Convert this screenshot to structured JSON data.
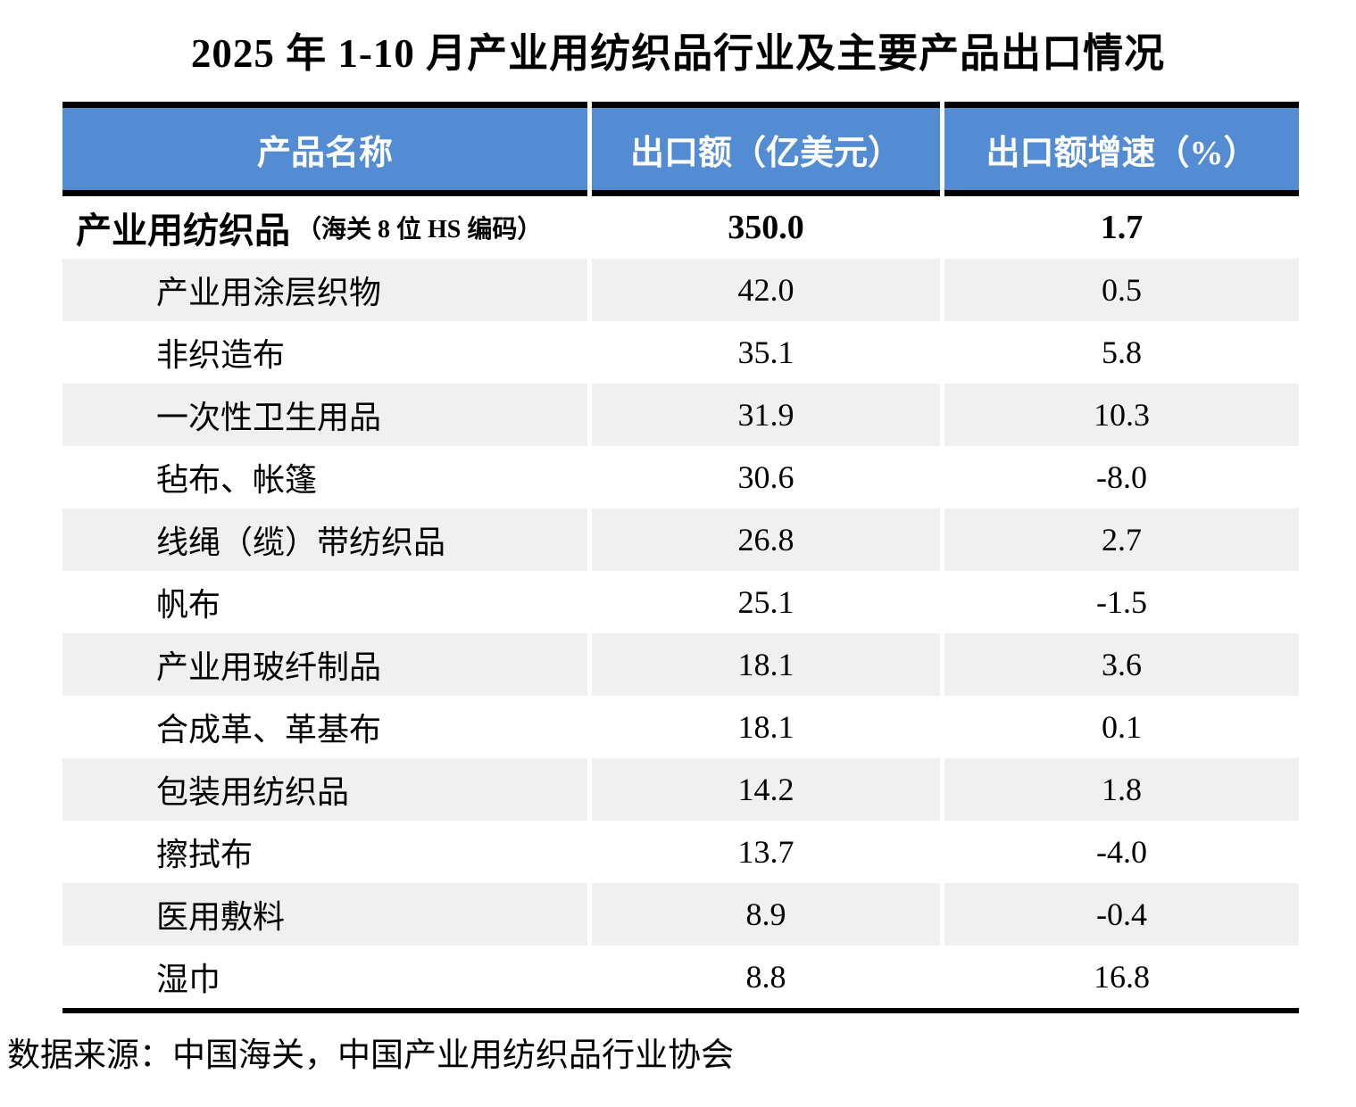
{
  "title": "2025 年 1-10 月产业用纺织品行业及主要产品出口情况",
  "source_note": "数据来源：中国海关，中国产业用纺织品行业协会",
  "colors": {
    "header_bg": "#538CD2",
    "header_text": "#FFFFFF",
    "stripe_bg": "#F0F0F0",
    "border": "#000000"
  },
  "table": {
    "headers": [
      "产品名称",
      "出口额（亿美元）",
      "出口额增速（%）"
    ],
    "rows": [
      {
        "name": "产业用纺织品",
        "note": "（海关 8 位 HS 编码）",
        "export_value": "350.0",
        "growth": "1.7",
        "bold": true
      },
      {
        "name": "产业用涂层织物",
        "export_value": "42.0",
        "growth": "0.5"
      },
      {
        "name": "非织造布",
        "export_value": "35.1",
        "growth": "5.8"
      },
      {
        "name": "一次性卫生用品",
        "export_value": "31.9",
        "growth": "10.3"
      },
      {
        "name": "毡布、帐篷",
        "export_value": "30.6",
        "growth": "-8.0"
      },
      {
        "name": "线绳（缆）带纺织品",
        "export_value": "26.8",
        "growth": "2.7"
      },
      {
        "name": "帆布",
        "export_value": "25.1",
        "growth": "-1.5"
      },
      {
        "name": "产业用玻纤制品",
        "export_value": "18.1",
        "growth": "3.6"
      },
      {
        "name": "合成革、革基布",
        "export_value": "18.1",
        "growth": "0.1"
      },
      {
        "name": "包装用纺织品",
        "export_value": "14.2",
        "growth": "1.8"
      },
      {
        "name": "擦拭布",
        "export_value": "13.7",
        "growth": "-4.0"
      },
      {
        "name": "医用敷料",
        "export_value": "8.9",
        "growth": "-0.4"
      },
      {
        "name": "湿巾",
        "export_value": "8.8",
        "growth": "16.8"
      }
    ]
  },
  "chart_data": {
    "type": "table",
    "title": "2025 年 1-10 月产业用纺织品行业及主要产品出口情况",
    "columns": [
      "产品名称",
      "出口额（亿美元）",
      "出口额增速（%）"
    ],
    "rows": [
      [
        "产业用纺织品（海关 8 位 HS 编码）",
        350.0,
        1.7
      ],
      [
        "产业用涂层织物",
        42.0,
        0.5
      ],
      [
        "非织造布",
        35.1,
        5.8
      ],
      [
        "一次性卫生用品",
        31.9,
        10.3
      ],
      [
        "毡布、帐篷",
        30.6,
        -8.0
      ],
      [
        "线绳（缆）带纺织品",
        26.8,
        2.7
      ],
      [
        "帆布",
        25.1,
        -1.5
      ],
      [
        "产业用玻纤制品",
        18.1,
        3.6
      ],
      [
        "合成革、革基布",
        18.1,
        0.1
      ],
      [
        "包装用纺织品",
        14.2,
        1.8
      ],
      [
        "擦拭布",
        13.7,
        -4.0
      ],
      [
        "医用敷料",
        8.9,
        -0.4
      ],
      [
        "湿巾",
        8.8,
        16.8
      ]
    ],
    "source": "数据来源：中国海关，中国产业用纺织品行业协会"
  }
}
